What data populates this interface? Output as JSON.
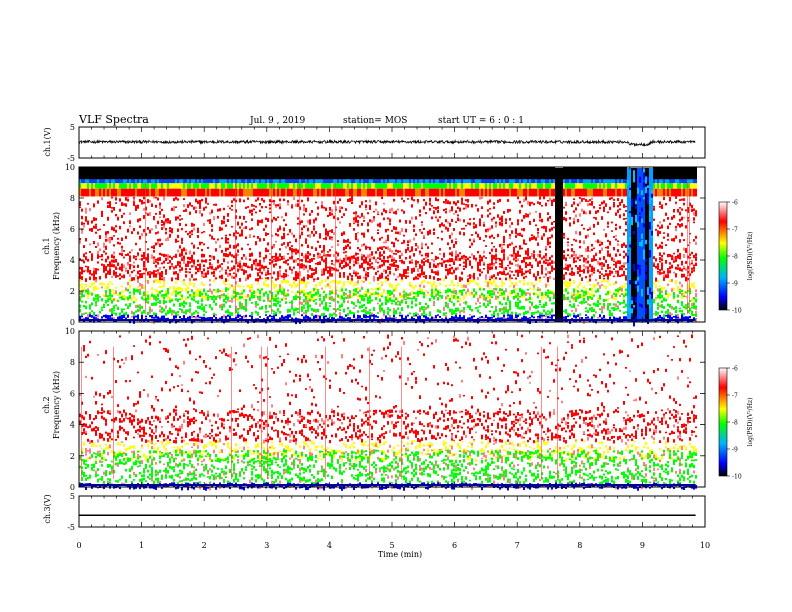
{
  "header": {
    "title": "VLF Spectra",
    "date": "Jul. 9 , 2019",
    "station": "station= MOS",
    "start": "start UT =  6 : 0  : 1"
  },
  "chart_data": [
    {
      "type": "line",
      "name": "ch1-waveform",
      "ylabel": "ch.1(V)",
      "ylim": [
        -5,
        5
      ],
      "yticks": [
        "5",
        "-5"
      ],
      "xlim": [
        0,
        10
      ],
      "x": [
        0,
        0.5,
        1,
        1.5,
        2,
        2.5,
        3,
        3.5,
        4,
        4.5,
        5,
        5.5,
        6,
        6.5,
        7,
        7.5,
        8,
        8.5,
        8.75,
        8.8,
        9.0,
        9.1,
        9.15,
        9.5,
        9.85
      ],
      "y": [
        0.2,
        0.2,
        0.2,
        0.2,
        0.2,
        0.2,
        0.2,
        0.2,
        0.2,
        0.2,
        0.2,
        0.2,
        0.2,
        0.2,
        0.2,
        0.2,
        0.2,
        0.2,
        0.2,
        -0.6,
        -0.6,
        -0.6,
        0.2,
        0.2,
        0.2
      ]
    },
    {
      "type": "heatmap",
      "name": "ch1-spectrogram",
      "ylabel": "ch.1\nFrequency (kHz)",
      "ylim": [
        0,
        10
      ],
      "yticks": [
        "0",
        "2",
        "4",
        "6",
        "8",
        "10"
      ],
      "xlim": [
        0,
        10
      ],
      "colorbar": {
        "label": "log(PSD)(V²/Hz)",
        "range": [
          -10,
          -6
        ],
        "ticks": [
          "-6",
          "-7",
          "-8",
          "-9",
          "-10"
        ]
      },
      "gaps": [
        [
          7.6,
          7.72
        ]
      ],
      "disturbed_interval": [
        8.75,
        9.15
      ]
    },
    {
      "type": "heatmap",
      "name": "ch2-spectrogram",
      "ylabel": "ch.2\nFrequency (kHz)",
      "ylim": [
        0,
        10
      ],
      "yticks": [
        "0",
        "2",
        "4",
        "6",
        "8",
        "10"
      ],
      "xlim": [
        0,
        10
      ],
      "colorbar": {
        "label": "log(PSD)(V²/Hz)",
        "range": [
          -10,
          -6
        ],
        "ticks": [
          "-6",
          "-7",
          "-8",
          "-9",
          "-10"
        ]
      }
    },
    {
      "type": "line",
      "name": "ch3-waveform",
      "ylabel": "ch.3(V)",
      "ylim": [
        -5,
        5
      ],
      "yticks": [
        "5",
        "-5"
      ],
      "xlim": [
        0,
        10
      ],
      "x": [
        0,
        9.85
      ],
      "y": [
        -1.2,
        -1.2
      ]
    }
  ],
  "xaxis": {
    "label": "Time (min)",
    "ticks": [
      "0",
      "1",
      "2",
      "3",
      "4",
      "5",
      "6",
      "7",
      "8",
      "9",
      "10"
    ]
  },
  "colors": {
    "background": "#ffffff",
    "axes": "#000000",
    "colormap": [
      "#000000",
      "#0000ff",
      "#00b0ff",
      "#00ff00",
      "#ffff00",
      "#ff0000",
      "#ffffff"
    ]
  }
}
